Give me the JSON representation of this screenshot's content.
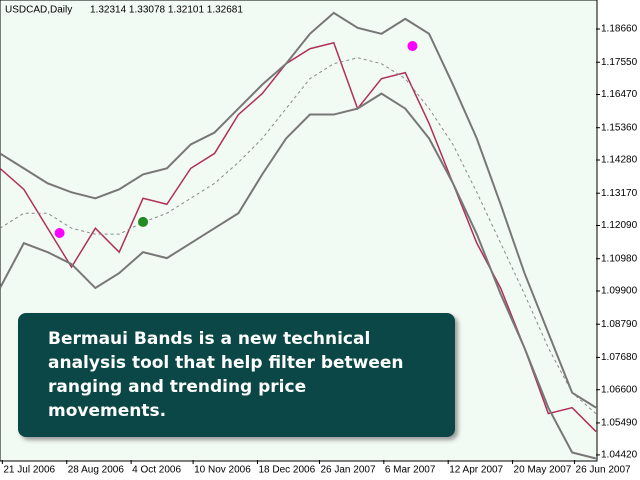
{
  "chart_data": {
    "type": "line",
    "title": "USDCAD,Daily",
    "quote": "1.32314 1.33078 1.32101 1.32681",
    "annotation": "Bermaui Bands is a new technical analysis tool that help filter between ranging and trending price movements.",
    "x": [
      0,
      10,
      20,
      30,
      40,
      50,
      60,
      70,
      80,
      90,
      100,
      110,
      120,
      130,
      140,
      150,
      160,
      170,
      180,
      190,
      200,
      210,
      220,
      230,
      240,
      250
    ],
    "xlim": [
      0,
      250
    ],
    "xticks": [
      {
        "value": 1,
        "label": "21 Jul 2006"
      },
      {
        "value": 28,
        "label": "28 Aug 2006"
      },
      {
        "value": 55,
        "label": "4 Oct 2006"
      },
      {
        "value": 81,
        "label": "10 Nov 2006"
      },
      {
        "value": 108,
        "label": "18 Dec 2006"
      },
      {
        "value": 134,
        "label": "26 Jan 2007"
      },
      {
        "value": 161,
        "label": "6 Mar 2007"
      },
      {
        "value": 188,
        "label": "12 Apr 2007"
      },
      {
        "value": 215,
        "label": "20 May 2007"
      },
      {
        "value": 241,
        "label": "26 Jun 2007"
      }
    ],
    "ylim": [
      1.0425,
      1.1963
    ],
    "yticks": [
      {
        "value": 1.1866,
        "label": "1.18660"
      },
      {
        "value": 1.1755,
        "label": "1.17550"
      },
      {
        "value": 1.1647,
        "label": "1.16470"
      },
      {
        "value": 1.1536,
        "label": "1.15360"
      },
      {
        "value": 1.1428,
        "label": "1.14280"
      },
      {
        "value": 1.1317,
        "label": "1.13170"
      },
      {
        "value": 1.1209,
        "label": "1.12090"
      },
      {
        "value": 1.1098,
        "label": "1.10980"
      },
      {
        "value": 1.099,
        "label": "1.09900"
      },
      {
        "value": 1.0879,
        "label": "1.08790"
      },
      {
        "value": 1.0768,
        "label": "1.07680"
      },
      {
        "value": 1.066,
        "label": "1.06600"
      },
      {
        "value": 1.0549,
        "label": "1.05490"
      },
      {
        "value": 1.0442,
        "label": "1.04420"
      }
    ],
    "series": [
      {
        "color": "#b0305a",
        "width": 1.5,
        "dash": false,
        "values": [
          1.14,
          1.133,
          1.12,
          1.107,
          1.12,
          1.112,
          1.13,
          1.128,
          1.14,
          1.145,
          1.158,
          1.165,
          1.175,
          1.18,
          1.182,
          1.16,
          1.17,
          1.172,
          1.155,
          1.135,
          1.115,
          1.1,
          1.08,
          1.058,
          1.06,
          1.052
        ]
      },
      {
        "color": "#777777",
        "width": 2,
        "dash": false,
        "values": [
          1.145,
          1.14,
          1.135,
          1.132,
          1.13,
          1.133,
          1.138,
          1.14,
          1.148,
          1.152,
          1.16,
          1.168,
          1.175,
          1.185,
          1.192,
          1.187,
          1.185,
          1.19,
          1.185,
          1.168,
          1.15,
          1.128,
          1.105,
          1.085,
          1.065,
          1.06
        ]
      },
      {
        "color": "#777777",
        "width": 2,
        "dash": false,
        "values": [
          1.1,
          1.115,
          1.112,
          1.108,
          1.1,
          1.105,
          1.112,
          1.11,
          1.115,
          1.12,
          1.125,
          1.138,
          1.15,
          1.158,
          1.158,
          1.16,
          1.165,
          1.16,
          1.15,
          1.135,
          1.118,
          1.098,
          1.08,
          1.06,
          1.045,
          1.043
        ]
      },
      {
        "color": "#888888",
        "width": 1,
        "dash": true,
        "values": [
          1.12,
          1.125,
          1.125,
          1.12,
          1.118,
          1.118,
          1.122,
          1.125,
          1.13,
          1.135,
          1.142,
          1.15,
          1.16,
          1.17,
          1.175,
          1.177,
          1.175,
          1.17,
          1.16,
          1.148,
          1.132,
          1.115,
          1.098,
          1.08,
          1.065,
          1.058
        ]
      }
    ],
    "signals": [
      {
        "x": 25,
        "y": 1.1184,
        "color": "#ff00ff"
      },
      {
        "x": 60,
        "y": 1.1221,
        "color": "#228b22"
      },
      {
        "x": 173,
        "y": 1.1809,
        "color": "#ff00ff"
      }
    ]
  }
}
